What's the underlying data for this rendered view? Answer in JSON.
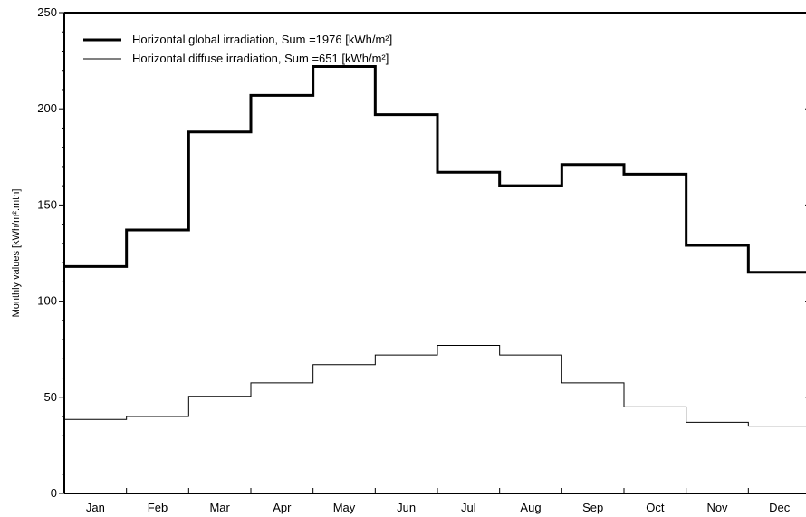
{
  "chart_data": {
    "type": "line",
    "step": true,
    "categories": [
      "Jan",
      "Feb",
      "Mar",
      "Apr",
      "May",
      "Jun",
      "Jul",
      "Aug",
      "Sep",
      "Oct",
      "Nov",
      "Dec"
    ],
    "series": [
      {
        "name": "Horizontal global irradiation,  Sum =1976 [kWh/m²]",
        "values": [
          118,
          137,
          188,
          207,
          222,
          197,
          167,
          160,
          171,
          166,
          129,
          115
        ],
        "color": "#000000",
        "weight": "thick"
      },
      {
        "name": "Horizontal diffuse irradiation,  Sum =651 [kWh/m²]",
        "values": [
          38.5,
          40,
          50.5,
          57.5,
          67,
          72,
          77,
          72,
          57.5,
          45,
          37,
          35
        ],
        "color": "#000000",
        "weight": "thin"
      }
    ],
    "xlabel": "",
    "ylabel": "Monthly values  [kWh/m².mth]",
    "ylim": [
      0,
      250
    ],
    "yticks": [
      "0",
      "50",
      "100",
      "150",
      "200",
      "250"
    ],
    "grid": false,
    "legend_position": "top-left"
  }
}
